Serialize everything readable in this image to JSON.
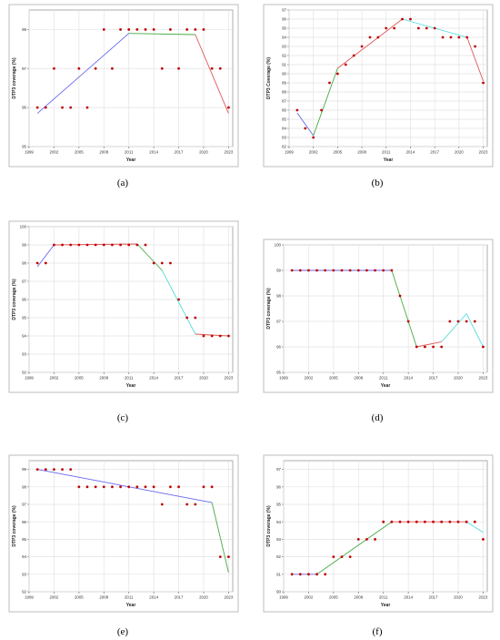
{
  "figure": {
    "x_axis_label": "Year",
    "y_axis_label": "DTP3 coverage (%)",
    "colors": {
      "point": "#c00000",
      "segment_1": "#6666ee",
      "segment_2": "#44aa44",
      "segment_3": "#e05555",
      "segment_4": "#55dddd"
    }
  },
  "chart_data": [
    {
      "type": "scatter",
      "caption": "(a)",
      "xlabel": "Year",
      "ylabel": "DTP3 coverage (%)",
      "x_ticks": [
        "1999",
        "2002",
        "2005",
        "2008",
        "2011",
        "2014",
        "2017",
        "2020",
        "2023"
      ],
      "y_ticks": [
        "95",
        "96",
        "97",
        "98"
      ],
      "xlim": [
        1999,
        2023.5
      ],
      "ylim": [
        95,
        98.5
      ],
      "points": {
        "x": [
          2000,
          2001,
          2002,
          2003,
          2004,
          2005,
          2006,
          2007,
          2008,
          2009,
          2010,
          2011,
          2012,
          2013,
          2014,
          2015,
          2016,
          2017,
          2018,
          2019,
          2020,
          2021,
          2022,
          2023
        ],
        "y": [
          96,
          96,
          97,
          96,
          96,
          97,
          96,
          97,
          98,
          97,
          98,
          98,
          98,
          98,
          98,
          97,
          98,
          97,
          98,
          98,
          98,
          97,
          97,
          96
        ]
      },
      "fit_segments": [
        {
          "x": [
            2000,
            2011
          ],
          "y": [
            95.85,
            97.9
          ],
          "color": "segment_1"
        },
        {
          "x": [
            2011,
            2019
          ],
          "y": [
            97.9,
            97.87
          ],
          "color": "segment_2"
        },
        {
          "x": [
            2019,
            2023
          ],
          "y": [
            97.87,
            95.85
          ],
          "color": "segment_3"
        }
      ]
    },
    {
      "type": "scatter",
      "caption": "(b)",
      "xlabel": "Year",
      "ylabel": "DTP3 Coverage (%)",
      "x_ticks": [
        "1999",
        "2002",
        "2005",
        "2008",
        "2011",
        "2014",
        "2017",
        "2020",
        "2023"
      ],
      "y_ticks": [
        "82",
        "83",
        "84",
        "85",
        "86",
        "87",
        "88",
        "89",
        "90",
        "91",
        "92",
        "93",
        "94",
        "95",
        "96",
        "97"
      ],
      "xlim": [
        1999,
        2023.5
      ],
      "ylim": [
        82,
        97
      ],
      "points": {
        "x": [
          2000,
          2001,
          2002,
          2003,
          2004,
          2005,
          2006,
          2007,
          2008,
          2009,
          2010,
          2011,
          2012,
          2013,
          2014,
          2015,
          2016,
          2017,
          2018,
          2019,
          2020,
          2021,
          2022,
          2023
        ],
        "y": [
          86,
          84,
          83,
          86,
          89,
          90,
          91,
          92,
          93,
          94,
          94,
          95,
          95,
          96,
          96,
          95,
          95,
          95,
          94,
          94,
          94,
          94,
          93,
          89
        ]
      },
      "fit_segments": [
        {
          "x": [
            2000,
            2002
          ],
          "y": [
            85.7,
            83.2
          ],
          "color": "segment_1"
        },
        {
          "x": [
            2002,
            2005
          ],
          "y": [
            83.2,
            90.6
          ],
          "color": "segment_2"
        },
        {
          "x": [
            2005,
            2013
          ],
          "y": [
            90.6,
            96.0
          ],
          "color": "segment_3"
        },
        {
          "x": [
            2013,
            2021
          ],
          "y": [
            96.0,
            94.0
          ],
          "color": "segment_4"
        },
        {
          "x": [
            2021,
            2023
          ],
          "y": [
            94.0,
            89.2
          ],
          "color": "segment_3"
        }
      ]
    },
    {
      "type": "scatter",
      "caption": "(c)",
      "xlabel": "Year",
      "ylabel": "DTP3 coverage (%)",
      "x_ticks": [
        "1999",
        "2002",
        "2005",
        "2008",
        "2011",
        "2014",
        "2017",
        "2020",
        "2023"
      ],
      "y_ticks": [
        "92",
        "93",
        "94",
        "95",
        "96",
        "97",
        "98",
        "99",
        "100"
      ],
      "xlim": [
        1999,
        2023.5
      ],
      "ylim": [
        92,
        100
      ],
      "points": {
        "x": [
          2000,
          2001,
          2002,
          2003,
          2004,
          2005,
          2006,
          2007,
          2008,
          2009,
          2010,
          2011,
          2012,
          2013,
          2014,
          2015,
          2016,
          2017,
          2018,
          2019,
          2020,
          2021,
          2022,
          2023
        ],
        "y": [
          98,
          98,
          99,
          99,
          99,
          99,
          99,
          99,
          99,
          99,
          99,
          99,
          99,
          99,
          98,
          98,
          98,
          96,
          95,
          95,
          94,
          94,
          94,
          94
        ]
      },
      "fit_segments": [
        {
          "x": [
            2000,
            2002
          ],
          "y": [
            97.8,
            99.0
          ],
          "color": "segment_1"
        },
        {
          "x": [
            2002,
            2012
          ],
          "y": [
            99.0,
            99.05
          ],
          "color": "segment_3"
        },
        {
          "x": [
            2012,
            2015
          ],
          "y": [
            99.05,
            97.6
          ],
          "color": "segment_2"
        },
        {
          "x": [
            2015,
            2019
          ],
          "y": [
            97.6,
            94.1
          ],
          "color": "segment_4"
        },
        {
          "x": [
            2019,
            2023
          ],
          "y": [
            94.1,
            94.0
          ],
          "color": "segment_3"
        }
      ]
    },
    {
      "type": "scatter",
      "caption": "(d)",
      "xlabel": "Year",
      "ylabel": "DTP3 coverage (%)",
      "x_ticks": [
        "1999",
        "2002",
        "2005",
        "2008",
        "2011",
        "2014",
        "2017",
        "2020",
        "2023"
      ],
      "y_ticks": [
        "95",
        "96",
        "97",
        "98",
        "99",
        "100"
      ],
      "xlim": [
        1999,
        2023.5
      ],
      "ylim": [
        95,
        100
      ],
      "points": {
        "x": [
          2000,
          2001,
          2002,
          2003,
          2004,
          2005,
          2006,
          2007,
          2008,
          2009,
          2010,
          2011,
          2012,
          2013,
          2014,
          2015,
          2016,
          2017,
          2018,
          2019,
          2020,
          2021,
          2022,
          2023
        ],
        "y": [
          99,
          99,
          99,
          99,
          99,
          99,
          99,
          99,
          99,
          99,
          99,
          99,
          99,
          98,
          97,
          96,
          96,
          96,
          96,
          97,
          97,
          97,
          97,
          96
        ]
      },
      "fit_segments": [
        {
          "x": [
            2000,
            2012
          ],
          "y": [
            99.0,
            99.0
          ],
          "color": "segment_1"
        },
        {
          "x": [
            2012,
            2015
          ],
          "y": [
            99.0,
            96.0
          ],
          "color": "segment_2"
        },
        {
          "x": [
            2015,
            2018
          ],
          "y": [
            96.0,
            96.2
          ],
          "color": "segment_3"
        },
        {
          "x": [
            2018,
            2021
          ],
          "y": [
            96.2,
            97.3
          ],
          "color": "segment_4"
        },
        {
          "x": [
            2021,
            2023
          ],
          "y": [
            97.3,
            96.0
          ],
          "color": "segment_4"
        }
      ]
    },
    {
      "type": "scatter",
      "caption": "(e)",
      "xlabel": "Year",
      "ylabel": "DTP3 coverage (%)",
      "x_ticks": [
        "1999",
        "2002",
        "2005",
        "2008",
        "2011",
        "2014",
        "2017",
        "2020",
        "2023"
      ],
      "y_ticks": [
        "92",
        "93",
        "94",
        "95",
        "96",
        "97",
        "98",
        "99"
      ],
      "xlim": [
        1999,
        2023.5
      ],
      "ylim": [
        92,
        99.5
      ],
      "points": {
        "x": [
          2000,
          2001,
          2002,
          2003,
          2004,
          2005,
          2006,
          2007,
          2008,
          2009,
          2010,
          2011,
          2012,
          2013,
          2014,
          2015,
          2016,
          2017,
          2018,
          2019,
          2020,
          2021,
          2022,
          2023
        ],
        "y": [
          99,
          99,
          99,
          99,
          99,
          98,
          98,
          98,
          98,
          98,
          98,
          98,
          98,
          98,
          98,
          97,
          98,
          98,
          97,
          97,
          98,
          98,
          94,
          94
        ]
      },
      "fit_segments": [
        {
          "x": [
            2000,
            2021
          ],
          "y": [
            99.0,
            97.1
          ],
          "color": "segment_1"
        },
        {
          "x": [
            2021,
            2023
          ],
          "y": [
            97.1,
            93.1
          ],
          "color": "segment_2"
        }
      ]
    },
    {
      "type": "scatter",
      "caption": "(f)",
      "xlabel": "Year",
      "ylabel": "DTP3 coverage (%)",
      "x_ticks": [
        "1999",
        "2002",
        "2005",
        "2008",
        "2011",
        "2014",
        "2017",
        "2020",
        "2023"
      ],
      "y_ticks": [
        "90",
        "91",
        "92",
        "93",
        "94",
        "95",
        "96",
        "97"
      ],
      "xlim": [
        1999,
        2023.5
      ],
      "ylim": [
        90,
        97.5
      ],
      "points": {
        "x": [
          2000,
          2001,
          2002,
          2003,
          2004,
          2005,
          2006,
          2007,
          2008,
          2009,
          2010,
          2011,
          2012,
          2013,
          2014,
          2015,
          2016,
          2017,
          2018,
          2019,
          2020,
          2021,
          2022,
          2023
        ],
        "y": [
          91,
          91,
          91,
          91,
          91,
          92,
          92,
          92,
          93,
          93,
          93,
          94,
          94,
          94,
          94,
          94,
          94,
          94,
          94,
          94,
          94,
          94,
          94,
          93
        ]
      },
      "fit_segments": [
        {
          "x": [
            2000,
            2003
          ],
          "y": [
            91.0,
            91.0
          ],
          "color": "segment_1"
        },
        {
          "x": [
            2003,
            2012
          ],
          "y": [
            91.0,
            94.0
          ],
          "color": "segment_2"
        },
        {
          "x": [
            2012,
            2021
          ],
          "y": [
            94.0,
            94.0
          ],
          "color": "segment_3"
        },
        {
          "x": [
            2021,
            2023
          ],
          "y": [
            94.0,
            93.4
          ],
          "color": "segment_4"
        }
      ]
    }
  ]
}
